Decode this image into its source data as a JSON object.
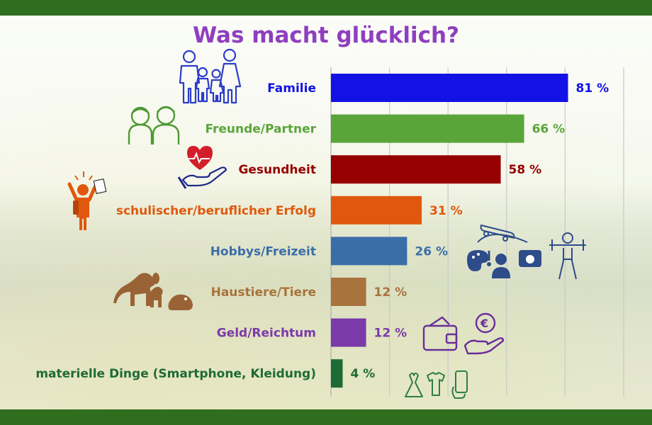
{
  "chart_data": {
    "type": "bar",
    "orientation": "horizontal",
    "title": "Was macht glücklich?",
    "xlim": [
      0,
      100
    ],
    "grid": true,
    "unit_suffix": " %",
    "categories": [
      "Familie",
      "Freunde/Partner",
      "Gesundheit",
      "schulischer/beruflicher Erfolg",
      "Hobbys/Freizeit",
      "Haustiere/Tiere",
      "Geld/Reichtum",
      "materielle Dinge (Smartphone, Kleidung)"
    ],
    "values": [
      81,
      66,
      58,
      31,
      26,
      12,
      12,
      4
    ],
    "colors": [
      "#1212e6",
      "#5aa53a",
      "#960000",
      "#e0580d",
      "#3a6ea8",
      "#a8733c",
      "#7a3aa8",
      "#1e6b35"
    ]
  },
  "icons": [
    "family-icon",
    "friends-icon",
    "health-heart-hand-icon",
    "success-student-icon",
    "hobbies-icon",
    "pets-icon",
    "wallet-euro-icon",
    "clothes-phone-icon"
  ]
}
